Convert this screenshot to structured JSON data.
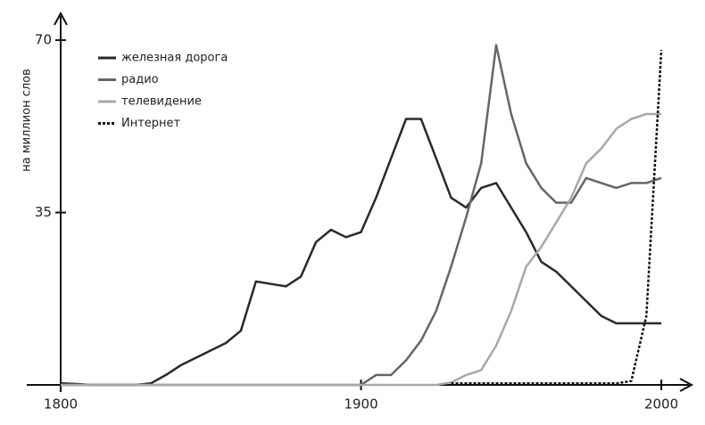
{
  "chart_data": {
    "type": "line",
    "y_label": "на миллион слов",
    "x": [
      1800,
      1805,
      1810,
      1815,
      1820,
      1825,
      1830,
      1835,
      1840,
      1845,
      1850,
      1855,
      1860,
      1865,
      1870,
      1875,
      1880,
      1885,
      1890,
      1895,
      1900,
      1905,
      1910,
      1915,
      1920,
      1925,
      1930,
      1935,
      1940,
      1945,
      1950,
      1955,
      1960,
      1965,
      1970,
      1975,
      1980,
      1985,
      1990,
      1995,
      2000
    ],
    "series": [
      {
        "name": "железная дорога",
        "color": "#2a2a2a",
        "style": "solid",
        "values": [
          0.3,
          0.2,
          0,
          0,
          0,
          0,
          0.3,
          2,
          4,
          5.5,
          7,
          8.5,
          11,
          21,
          20.5,
          20,
          22,
          29,
          31.5,
          30,
          31,
          38,
          46,
          54,
          54,
          46,
          38,
          36,
          40,
          41,
          36,
          31,
          25,
          23,
          20,
          17,
          14,
          12.5,
          12.5,
          12.5,
          12.5
        ]
      },
      {
        "name": "радио",
        "color": "#666666",
        "style": "solid",
        "values": [
          0,
          0,
          0,
          0,
          0,
          0,
          0,
          0,
          0,
          0,
          0,
          0,
          0,
          0,
          0,
          0,
          0,
          0,
          0,
          0,
          0,
          2,
          2,
          5,
          9,
          15,
          24,
          34,
          45,
          69,
          55,
          45,
          40,
          37,
          37,
          42,
          41,
          40,
          41,
          41,
          42
        ]
      },
      {
        "name": "телевидение",
        "color": "#a8a8a8",
        "style": "solid",
        "values": [
          0,
          0,
          0,
          0,
          0,
          0,
          0,
          0,
          0,
          0,
          0,
          0,
          0,
          0,
          0,
          0,
          0,
          0,
          0,
          0,
          0,
          0,
          0,
          0,
          0,
          0,
          0.5,
          2,
          3,
          8,
          15,
          24,
          28,
          33,
          38,
          45,
          48,
          52,
          54,
          55,
          55
        ]
      },
      {
        "name": "Интернет",
        "color": "#111111",
        "style": "dashed",
        "values": [
          null,
          null,
          null,
          null,
          null,
          null,
          null,
          null,
          null,
          null,
          null,
          null,
          null,
          null,
          null,
          null,
          null,
          null,
          null,
          null,
          null,
          null,
          null,
          null,
          null,
          null,
          0.3,
          0.3,
          0.3,
          0.3,
          0.3,
          0.3,
          0.3,
          0.3,
          0.3,
          0.3,
          0.3,
          0.3,
          0.8,
          14,
          68
        ]
      }
    ],
    "xlim": [
      1800,
      2008
    ],
    "xticks": [
      1800,
      1900,
      2000
    ],
    "ylim": [
      0,
      72
    ],
    "yticks": [
      35,
      70
    ],
    "legend": "top-left"
  }
}
